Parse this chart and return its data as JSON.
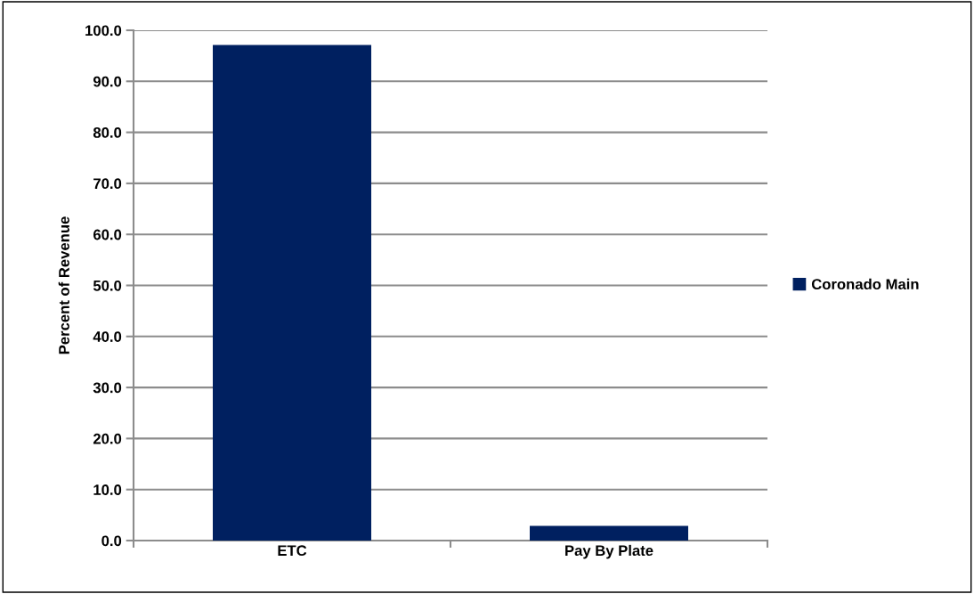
{
  "chart_data": {
    "type": "bar",
    "ylabel": "Percent of Revenue",
    "categories": [
      "ETC",
      "Pay By Plate"
    ],
    "series": [
      {
        "name": "Coronado Main",
        "color": "#002060",
        "values": [
          97.1,
          2.9
        ]
      }
    ],
    "ylim": [
      0,
      100
    ],
    "yticks": [
      {
        "value": 0,
        "label": "0.0"
      },
      {
        "value": 10,
        "label": "10.0"
      },
      {
        "value": 20,
        "label": "20.0"
      },
      {
        "value": 30,
        "label": "30.0"
      },
      {
        "value": 40,
        "label": "40.0"
      },
      {
        "value": 50,
        "label": "50.0"
      },
      {
        "value": 60,
        "label": "60.0"
      },
      {
        "value": 70,
        "label": "70.0"
      },
      {
        "value": 80,
        "label": "80.0"
      },
      {
        "value": 90,
        "label": "90.0"
      },
      {
        "value": 100,
        "label": "100.0"
      }
    ],
    "grid": "y",
    "legend": "right"
  }
}
